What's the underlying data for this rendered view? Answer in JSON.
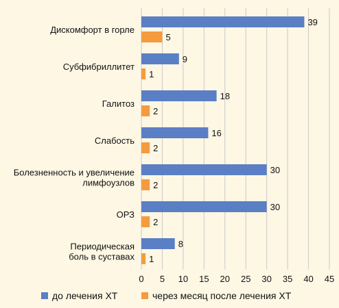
{
  "chart_data": {
    "type": "bar",
    "orientation": "horizontal",
    "categories": [
      [
        "Дискомфорт в горле"
      ],
      [
        "Субфибриллитет"
      ],
      [
        "Галитоз"
      ],
      [
        "Слабость"
      ],
      [
        "Болезненность и увеличение",
        "лимфоузлов"
      ],
      [
        "ОРЗ"
      ],
      [
        "Периодическая",
        "боль в суставах"
      ]
    ],
    "series": [
      {
        "name": "до лечения ХТ",
        "color": "#5b7fc4",
        "values": [
          39,
          9,
          18,
          16,
          30,
          30,
          8
        ]
      },
      {
        "name": "через месяц после лечения ХТ",
        "color": "#f49b3f",
        "values": [
          5,
          1,
          2,
          2,
          2,
          2,
          1
        ]
      }
    ],
    "xlim": [
      0,
      45
    ],
    "xticks": [
      0,
      5,
      10,
      15,
      20,
      25,
      30,
      35,
      40,
      45
    ],
    "grid": "vertical",
    "legend": "bottom"
  }
}
